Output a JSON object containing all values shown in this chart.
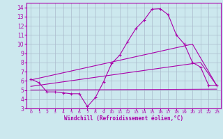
{
  "bg_color": "#cce8ee",
  "line_color": "#aa00aa",
  "grid_color": "#aabbcc",
  "xlabel": "Windchill (Refroidissement éolien,°C)",
  "ylabel_ticks": [
    3,
    4,
    5,
    6,
    7,
    8,
    9,
    10,
    11,
    12,
    13,
    14
  ],
  "xlabel_ticks": [
    0,
    1,
    2,
    3,
    4,
    5,
    6,
    7,
    8,
    9,
    10,
    11,
    12,
    13,
    14,
    15,
    16,
    17,
    18,
    19,
    20,
    21,
    22,
    23
  ],
  "ylim": [
    3,
    14.5
  ],
  "xlim": [
    -0.5,
    23.5
  ],
  "wavy_line": {
    "x": [
      0,
      1,
      2,
      3,
      4,
      5,
      6,
      7,
      8,
      9,
      10,
      11,
      12,
      13,
      14,
      15,
      16,
      17,
      18,
      19,
      20,
      21,
      22,
      23
    ],
    "y": [
      6.2,
      5.8,
      4.8,
      4.8,
      4.7,
      4.6,
      4.6,
      3.2,
      4.2,
      5.9,
      7.9,
      8.8,
      10.3,
      11.7,
      12.6,
      13.8,
      13.85,
      13.2,
      11.0,
      10.0,
      8.0,
      7.5,
      5.5,
      5.5
    ]
  },
  "flat_line": {
    "x": [
      0,
      23
    ],
    "y": [
      5.0,
      5.1
    ]
  },
  "mid_line": {
    "x": [
      0,
      21,
      23
    ],
    "y": [
      5.4,
      8.0,
      5.5
    ]
  },
  "upper_line": {
    "x": [
      0,
      20,
      23
    ],
    "y": [
      6.1,
      10.0,
      5.5
    ]
  }
}
